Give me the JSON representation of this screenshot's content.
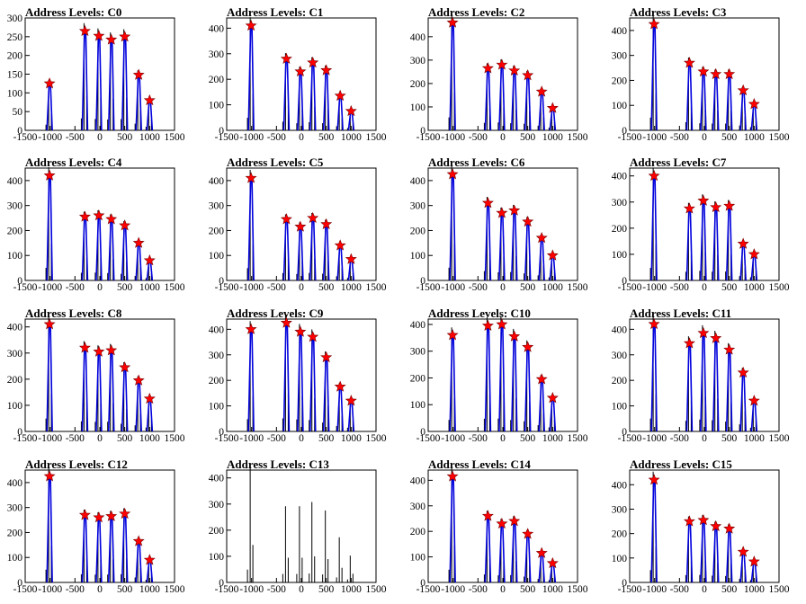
{
  "chart_data": [
    {
      "type": "line",
      "title": "Address Levels: C0",
      "xlim": [
        -1500,
        1500
      ],
      "ylim": [
        0,
        300
      ],
      "yticks": [
        0,
        50,
        100,
        150,
        200,
        250,
        300
      ],
      "xticks": [
        -1500,
        -1000,
        -500,
        0,
        500,
        1000,
        1500
      ],
      "peaks": [
        {
          "x": -1010,
          "y": 125
        },
        {
          "x": -300,
          "y": 265
        },
        {
          "x": -20,
          "y": 252
        },
        {
          "x": 230,
          "y": 242
        },
        {
          "x": 500,
          "y": 250
        },
        {
          "x": 780,
          "y": 148
        },
        {
          "x": 1000,
          "y": 80
        }
      ]
    },
    {
      "type": "line",
      "title": "Address Levels: C1",
      "xlim": [
        -1500,
        1500
      ],
      "ylim": [
        0,
        440
      ],
      "yticks": [
        0,
        100,
        200,
        300,
        400
      ],
      "xticks": [
        -1500,
        -1000,
        -500,
        0,
        500,
        1000,
        1500
      ],
      "peaks": [
        {
          "x": -1010,
          "y": 410
        },
        {
          "x": -300,
          "y": 280
        },
        {
          "x": -20,
          "y": 230
        },
        {
          "x": 230,
          "y": 265
        },
        {
          "x": 500,
          "y": 235
        },
        {
          "x": 780,
          "y": 135
        },
        {
          "x": 1000,
          "y": 75
        }
      ]
    },
    {
      "type": "line",
      "title": "Address Levels: C2",
      "xlim": [
        -1500,
        1500
      ],
      "ylim": [
        0,
        480
      ],
      "yticks": [
        0,
        100,
        200,
        300,
        400
      ],
      "xticks": [
        -1500,
        -1000,
        -500,
        0,
        500,
        1000,
        1500
      ],
      "peaks": [
        {
          "x": -1010,
          "y": 460
        },
        {
          "x": -300,
          "y": 265
        },
        {
          "x": -20,
          "y": 280
        },
        {
          "x": 230,
          "y": 255
        },
        {
          "x": 500,
          "y": 235
        },
        {
          "x": 780,
          "y": 165
        },
        {
          "x": 1000,
          "y": 95
        }
      ]
    },
    {
      "type": "line",
      "title": "Address Levels: C3",
      "xlim": [
        -1500,
        1500
      ],
      "ylim": [
        0,
        450
      ],
      "yticks": [
        0,
        100,
        200,
        300,
        400
      ],
      "xticks": [
        -1500,
        -1000,
        -500,
        0,
        500,
        1000,
        1500
      ],
      "peaks": [
        {
          "x": -1010,
          "y": 425
        },
        {
          "x": -300,
          "y": 270
        },
        {
          "x": -20,
          "y": 235
        },
        {
          "x": 230,
          "y": 225
        },
        {
          "x": 500,
          "y": 225
        },
        {
          "x": 780,
          "y": 160
        },
        {
          "x": 1000,
          "y": 105
        }
      ]
    },
    {
      "type": "line",
      "title": "Address Levels: C4",
      "xlim": [
        -1500,
        1500
      ],
      "ylim": [
        0,
        450
      ],
      "yticks": [
        0,
        100,
        200,
        300,
        400
      ],
      "xticks": [
        -1500,
        -1000,
        -500,
        0,
        500,
        1000,
        1500
      ],
      "peaks": [
        {
          "x": -1010,
          "y": 420
        },
        {
          "x": -300,
          "y": 255
        },
        {
          "x": -20,
          "y": 260
        },
        {
          "x": 230,
          "y": 245
        },
        {
          "x": 500,
          "y": 220
        },
        {
          "x": 780,
          "y": 150
        },
        {
          "x": 1000,
          "y": 80
        }
      ]
    },
    {
      "type": "line",
      "title": "Address Levels: C5",
      "xlim": [
        -1500,
        1500
      ],
      "ylim": [
        0,
        450
      ],
      "yticks": [
        0,
        100,
        200,
        300,
        400
      ],
      "xticks": [
        -1500,
        -1000,
        -500,
        0,
        500,
        1000,
        1500
      ],
      "peaks": [
        {
          "x": -1010,
          "y": 410
        },
        {
          "x": -300,
          "y": 245
        },
        {
          "x": -20,
          "y": 215
        },
        {
          "x": 230,
          "y": 250
        },
        {
          "x": 500,
          "y": 225
        },
        {
          "x": 780,
          "y": 140
        },
        {
          "x": 1000,
          "y": 85
        }
      ]
    },
    {
      "type": "line",
      "title": "Address Levels: C6",
      "xlim": [
        -1500,
        1500
      ],
      "ylim": [
        0,
        450
      ],
      "yticks": [
        0,
        100,
        200,
        300,
        400
      ],
      "xticks": [
        -1500,
        -1000,
        -500,
        0,
        500,
        1000,
        1500
      ],
      "peaks": [
        {
          "x": -1010,
          "y": 425
        },
        {
          "x": -300,
          "y": 310
        },
        {
          "x": -20,
          "y": 270
        },
        {
          "x": 230,
          "y": 280
        },
        {
          "x": 500,
          "y": 235
        },
        {
          "x": 780,
          "y": 170
        },
        {
          "x": 1000,
          "y": 100
        }
      ]
    },
    {
      "type": "line",
      "title": "Address Levels: C7",
      "xlim": [
        -1500,
        1500
      ],
      "ylim": [
        0,
        430
      ],
      "yticks": [
        0,
        100,
        200,
        300,
        400
      ],
      "xticks": [
        -1500,
        -1000,
        -500,
        0,
        500,
        1000,
        1500
      ],
      "peaks": [
        {
          "x": -1010,
          "y": 400
        },
        {
          "x": -300,
          "y": 275
        },
        {
          "x": -20,
          "y": 305
        },
        {
          "x": 230,
          "y": 280
        },
        {
          "x": 500,
          "y": 285
        },
        {
          "x": 780,
          "y": 140
        },
        {
          "x": 1000,
          "y": 100
        }
      ]
    },
    {
      "type": "line",
      "title": "Address Levels: C8",
      "xlim": [
        -1500,
        1500
      ],
      "ylim": [
        0,
        430
      ],
      "yticks": [
        0,
        100,
        200,
        300,
        400
      ],
      "xticks": [
        -1500,
        -1000,
        -500,
        0,
        500,
        1000,
        1500
      ],
      "peaks": [
        {
          "x": -1010,
          "y": 410
        },
        {
          "x": -300,
          "y": 320
        },
        {
          "x": -20,
          "y": 305
        },
        {
          "x": 230,
          "y": 310
        },
        {
          "x": 500,
          "y": 245
        },
        {
          "x": 780,
          "y": 195
        },
        {
          "x": 1000,
          "y": 125
        }
      ]
    },
    {
      "type": "line",
      "title": "Address Levels: C9",
      "xlim": [
        -1500,
        1500
      ],
      "ylim": [
        0,
        440
      ],
      "yticks": [
        0,
        100,
        200,
        300,
        400
      ],
      "xticks": [
        -1500,
        -1000,
        -500,
        0,
        500,
        1000,
        1500
      ],
      "peaks": [
        {
          "x": -1010,
          "y": 400
        },
        {
          "x": -300,
          "y": 425
        },
        {
          "x": -20,
          "y": 390
        },
        {
          "x": 230,
          "y": 370
        },
        {
          "x": 500,
          "y": 290
        },
        {
          "x": 780,
          "y": 175
        },
        {
          "x": 1000,
          "y": 120
        }
      ]
    },
    {
      "type": "line",
      "title": "Address Levels: C10",
      "xlim": [
        -1500,
        1500
      ],
      "ylim": [
        0,
        420
      ],
      "yticks": [
        0,
        100,
        200,
        300,
        400
      ],
      "xticks": [
        -1500,
        -1000,
        -500,
        0,
        500,
        1000,
        1500
      ],
      "peaks": [
        {
          "x": -1010,
          "y": 360
        },
        {
          "x": -300,
          "y": 395
        },
        {
          "x": -20,
          "y": 400
        },
        {
          "x": 230,
          "y": 355
        },
        {
          "x": 500,
          "y": 315
        },
        {
          "x": 780,
          "y": 195
        },
        {
          "x": 1000,
          "y": 125
        }
      ]
    },
    {
      "type": "line",
      "title": "Address Levels: C11",
      "xlim": [
        -1500,
        1500
      ],
      "ylim": [
        0,
        440
      ],
      "yticks": [
        0,
        100,
        200,
        300,
        400
      ],
      "xticks": [
        -1500,
        -1000,
        -500,
        0,
        500,
        1000,
        1500
      ],
      "peaks": [
        {
          "x": -1010,
          "y": 420
        },
        {
          "x": -300,
          "y": 345
        },
        {
          "x": -20,
          "y": 385
        },
        {
          "x": 230,
          "y": 365
        },
        {
          "x": 500,
          "y": 320
        },
        {
          "x": 780,
          "y": 230
        },
        {
          "x": 1000,
          "y": 120
        }
      ]
    },
    {
      "type": "line",
      "title": "Address Levels: C12",
      "xlim": [
        -1500,
        1500
      ],
      "ylim": [
        0,
        450
      ],
      "yticks": [
        0,
        100,
        200,
        300,
        400
      ],
      "xticks": [
        -1500,
        -1000,
        -500,
        0,
        500,
        1000,
        1500
      ],
      "peaks": [
        {
          "x": -1010,
          "y": 425
        },
        {
          "x": -300,
          "y": 270
        },
        {
          "x": -20,
          "y": 260
        },
        {
          "x": 230,
          "y": 265
        },
        {
          "x": 500,
          "y": 275
        },
        {
          "x": 780,
          "y": 165
        },
        {
          "x": 1000,
          "y": 90
        }
      ]
    },
    {
      "type": "line",
      "title": "Address Levels: C13",
      "xlim": [
        -1500,
        1500
      ],
      "ylim": [
        0,
        430
      ],
      "yticks": [
        0,
        100,
        200,
        300,
        400
      ],
      "xticks": [
        -1500,
        -1000,
        -500,
        0,
        500,
        1000,
        1500
      ],
      "peaks": [
        {
          "x": -1010,
          "y": 410
        },
        {
          "x": -300,
          "y": 270
        },
        {
          "x": -20,
          "y": 270
        },
        {
          "x": 230,
          "y": 285
        },
        {
          "x": 500,
          "y": 255
        },
        {
          "x": 780,
          "y": 160
        },
        {
          "x": 1000,
          "y": 95
        }
      ],
      "no_markers": true
    },
    {
      "type": "line",
      "title": "Address Levels: C14",
      "xlim": [
        -1500,
        1500
      ],
      "ylim": [
        0,
        440
      ],
      "yticks": [
        0,
        100,
        200,
        300,
        400
      ],
      "xticks": [
        -1500,
        -1000,
        -500,
        0,
        500,
        1000,
        1500
      ],
      "peaks": [
        {
          "x": -1010,
          "y": 415
        },
        {
          "x": -300,
          "y": 260
        },
        {
          "x": -20,
          "y": 230
        },
        {
          "x": 230,
          "y": 240
        },
        {
          "x": 500,
          "y": 190
        },
        {
          "x": 780,
          "y": 115
        },
        {
          "x": 1000,
          "y": 75
        }
      ]
    },
    {
      "type": "line",
      "title": "Address Levels: C15",
      "xlim": [
        -1500,
        1500
      ],
      "ylim": [
        0,
        460
      ],
      "yticks": [
        0,
        100,
        200,
        300,
        400
      ],
      "xticks": [
        -1500,
        -1000,
        -500,
        0,
        500,
        1000,
        1500
      ],
      "peaks": [
        {
          "x": -1010,
          "y": 420
        },
        {
          "x": -300,
          "y": 250
        },
        {
          "x": -20,
          "y": 255
        },
        {
          "x": 230,
          "y": 230
        },
        {
          "x": 500,
          "y": 220
        },
        {
          "x": 780,
          "y": 125
        },
        {
          "x": 1000,
          "y": 85
        }
      ]
    }
  ],
  "colors": {
    "histogram": "#000000",
    "fit": "#0000dd",
    "marker": "#ff0000",
    "axis": "#000000"
  }
}
